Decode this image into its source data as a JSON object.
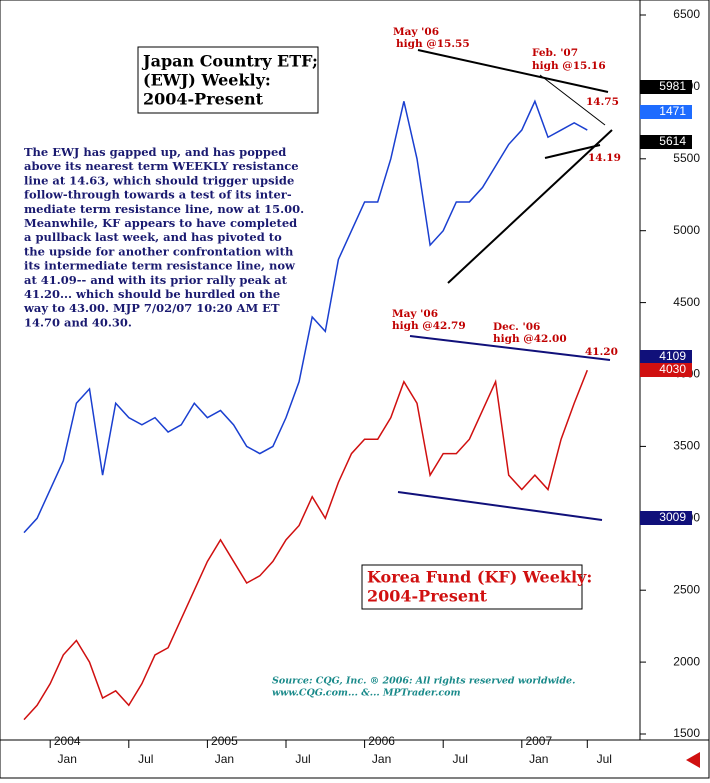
{
  "chart_data": {
    "type": "line",
    "x": [
      "Nov 2003",
      "Dec 2003",
      "Jan 2004",
      "Feb 2004",
      "Mar 2004",
      "Apr 2004",
      "May 2004",
      "Jun 2004",
      "Jul 2004",
      "Aug 2004",
      "Sep 2004",
      "Oct 2004",
      "Nov 2004",
      "Dec 2004",
      "Jan 2005",
      "Feb 2005",
      "Mar 2005",
      "Apr 2005",
      "May 2005",
      "Jun 2005",
      "Jul 2005",
      "Aug 2005",
      "Sep 2005",
      "Oct 2005",
      "Nov 2005",
      "Dec 2005",
      "Jan 2006",
      "Feb 2006",
      "Mar 2006",
      "Apr 2006",
      "May 2006",
      "Jun 2006",
      "Jul 2006",
      "Aug 2006",
      "Sep 2006",
      "Oct 2006",
      "Nov 2006",
      "Dec 2006",
      "Jan 2007",
      "Feb 2007",
      "Mar 2007",
      "Apr 2007",
      "May 2007",
      "Jun 2007"
    ],
    "series": [
      {
        "color": "#1a3fd0",
        "values": [
          2900,
          3000,
          3200,
          3400,
          3800,
          3900,
          3300,
          3800,
          3700,
          3650,
          3700,
          3600,
          3650,
          3800,
          3700,
          3750,
          3650,
          3500,
          3450,
          3500,
          3700,
          3950,
          4400,
          4300,
          4800,
          5000,
          5200,
          5200,
          5500,
          5900,
          5500,
          4900,
          5000,
          5200,
          5200,
          5300,
          5450,
          5600,
          5700,
          5900,
          5650,
          5700,
          5750,
          5700
        ]
      },
      {
        "color": "#d01010",
        "values": [
          1600,
          1700,
          1850,
          2050,
          2150,
          2000,
          1750,
          1800,
          1700,
          1850,
          2050,
          2100,
          2300,
          2500,
          2700,
          2850,
          2700,
          2550,
          2600,
          2700,
          2850,
          2950,
          3150,
          3000,
          3250,
          3450,
          3550,
          3550,
          3700,
          3950,
          3800,
          3300,
          3450,
          3450,
          3550,
          3750,
          3950,
          3300,
          3200,
          3300,
          3200,
          3550,
          3800,
          4030
        ]
      }
    ],
    "ylim": [
      1500,
      6500
    ],
    "yticks": [
      1500,
      2000,
      2500,
      3000,
      3500,
      4000,
      4500,
      5000,
      5500,
      6000,
      6500
    ],
    "x_month_labels": [
      {
        "x": "Jan 2004",
        "label": "Jan"
      },
      {
        "x": "Jul 2004",
        "label": "Jul"
      },
      {
        "x": "Jan 2005",
        "label": "Jan"
      },
      {
        "x": "Jul 2005",
        "label": "Jul"
      },
      {
        "x": "Jan 2006",
        "label": "Jan"
      },
      {
        "x": "Jul 2006",
        "label": "Jul"
      },
      {
        "x": "Jan 2007",
        "label": "Jan"
      },
      {
        "x": "Jun 2007",
        "label": "Jul"
      }
    ],
    "x_year_labels": [
      {
        "x": "Jan 2004",
        "label": "2004"
      },
      {
        "x": "Jan 2005",
        "label": "2005"
      },
      {
        "x": "Jan 2006",
        "label": "2006"
      },
      {
        "x": "Jan 2007",
        "label": "2007"
      }
    ],
    "ewj_title": [
      "Japan Country ETF;",
      "(EWJ) Weekly:",
      "2004-Present"
    ],
    "kf_title": [
      "Korea Fund (KF) Weekly:",
      "2004-Present"
    ],
    "commentary": [
      "The EWJ has gapped up, and has popped",
      "above its nearest term WEEKLY resistance",
      "line at 14.63, which should trigger upside",
      "follow-through towards a test of its inter-",
      "mediate term resistance line, now at 15.00.",
      "Meanwhile, KF appears to have completed",
      "a pullback last week, and has pivoted to",
      "the upside for another confrontation with",
      "its intermediate term resistance line, now",
      "at 41.09-- and with its prior rally peak at",
      "41.20... which should be hurdled on the",
      "way to 43.00. MJP 7/02/07 10:20 AM ET",
      "14.70 and 40.30."
    ],
    "source": [
      "Source: CQG, Inc. ® 2006: All rights reserved worldwide.",
      "www.CQG.com... &... MPTrader.com"
    ],
    "annotations": [
      "May '06",
      "high @15.55",
      "Feb. '07",
      "high @15.16",
      "14.75",
      "14.19",
      "May '06",
      "high @42.79",
      "Dec. '06",
      "high @42.00",
      "41.20"
    ],
    "price_tags": [
      "5981",
      "1471",
      "5614",
      "4109",
      "4030",
      "3009"
    ]
  }
}
